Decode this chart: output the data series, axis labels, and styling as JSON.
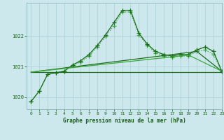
{
  "title": "Graphe pression niveau de la mer (hPa)",
  "background_color": "#cce8ec",
  "grid_color": "#aacdd4",
  "xlim": [
    -0.5,
    23
  ],
  "ylim": [
    1019.6,
    1023.1
  ],
  "yticks": [
    1020,
    1021,
    1022
  ],
  "xticks": [
    0,
    1,
    2,
    3,
    4,
    5,
    6,
    7,
    8,
    9,
    10,
    11,
    12,
    13,
    14,
    15,
    16,
    17,
    18,
    19,
    20,
    21,
    22,
    23
  ],
  "series": [
    {
      "x": [
        0,
        1,
        2,
        3,
        4,
        5,
        6,
        7,
        8,
        9,
        10,
        11,
        12,
        13,
        14,
        15,
        16,
        17,
        18,
        19,
        20,
        21,
        22,
        23
      ],
      "y": [
        1019.85,
        1020.2,
        1020.75,
        1020.8,
        1020.85,
        1021.05,
        1021.15,
        1021.35,
        1021.65,
        1022.0,
        1022.35,
        1022.8,
        1022.8,
        1022.05,
        1021.7,
        1021.45,
        1021.35,
        1021.3,
        1021.35,
        1021.35,
        1021.5,
        1021.55,
        1021.4,
        1020.85
      ],
      "color": "#3aaa3a",
      "linewidth": 0.9,
      "marker": "+",
      "markersize": 4,
      "linestyle": ":"
    },
    {
      "x": [
        0,
        1,
        2,
        3,
        4,
        5,
        6,
        7,
        8,
        9,
        10,
        11,
        12,
        13,
        14,
        15,
        16,
        17,
        18,
        19,
        20,
        21,
        22,
        23
      ],
      "y": [
        1019.85,
        1020.2,
        1020.75,
        1020.8,
        1020.85,
        1021.05,
        1021.2,
        1021.4,
        1021.7,
        1022.05,
        1022.45,
        1022.85,
        1022.85,
        1022.1,
        1021.75,
        1021.5,
        1021.4,
        1021.35,
        1021.4,
        1021.4,
        1021.55,
        1021.65,
        1021.5,
        1020.85
      ],
      "color": "#1a6b1a",
      "linewidth": 0.9,
      "marker": "+",
      "markersize": 4,
      "linestyle": "-"
    },
    {
      "x": [
        0,
        23
      ],
      "y": [
        1020.82,
        1020.82
      ],
      "color": "#1a6b1a",
      "linewidth": 0.9,
      "marker": null,
      "linestyle": "-"
    },
    {
      "x": [
        0,
        20,
        23
      ],
      "y": [
        1020.82,
        1021.5,
        1020.85
      ],
      "color": "#1a6b1a",
      "linewidth": 0.9,
      "marker": null,
      "linestyle": "-"
    },
    {
      "x": [
        0,
        19,
        23
      ],
      "y": [
        1020.82,
        1021.38,
        1020.85
      ],
      "color": "#3aaa3a",
      "linewidth": 0.9,
      "marker": null,
      "linestyle": "-"
    }
  ]
}
